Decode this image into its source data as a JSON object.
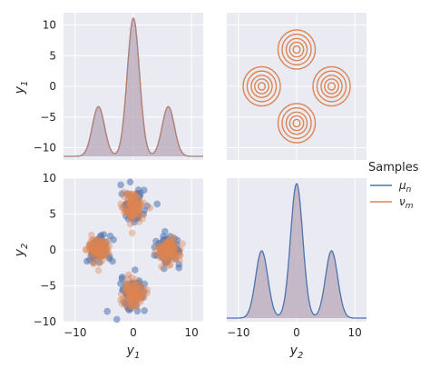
{
  "figure": {
    "type": "pairplot",
    "background": "#ffffff",
    "panel_background": "#eaeaf2",
    "grid_color": "#ffffff"
  },
  "legend": {
    "title": "Samples",
    "entries": [
      {
        "name": "μ",
        "sub": "n",
        "color": "#4c72b0"
      },
      {
        "name": "ν",
        "sub": "m",
        "color": "#dd8452"
      }
    ],
    "placement": "right-center"
  },
  "chart_data": [
    {
      "type": "area",
      "panel": "y1-diagonal-kde",
      "description_key": "kde",
      "x_range": [
        -12,
        12
      ],
      "ylabel_main": "y",
      "ylabel_sub": "1",
      "yticks": [
        "10",
        "5",
        "0",
        "−5",
        "−10"
      ],
      "ytick_values": [
        10,
        5,
        0,
        -5,
        -10
      ],
      "y_range": [
        -12,
        12
      ],
      "peaks": [
        {
          "x": -6,
          "height": 0.36
        },
        {
          "x": 0,
          "height": 1.0
        },
        {
          "x": 6,
          "height": 0.36
        }
      ],
      "peak_width": 1.05
    },
    {
      "type": "line",
      "panel": "y1-vs-y2-contour",
      "x_range": [
        -12,
        12
      ],
      "y_range": [
        -12,
        12
      ],
      "centers": [
        [
          0,
          6
        ],
        [
          -6,
          0
        ],
        [
          6,
          0
        ],
        [
          0,
          -6
        ]
      ],
      "ring_radii": [
        0.6,
        1.2,
        1.8,
        2.5,
        3.2
      ],
      "series_color": "#dd8452"
    },
    {
      "type": "scatter",
      "panel": "y2-vs-y1-scatter",
      "x_range": [
        -12,
        12
      ],
      "y_range": [
        -10,
        10
      ],
      "ylabel_main": "y",
      "ylabel_sub": "2",
      "xlabel_main": "y",
      "xlabel_sub": "1",
      "xticks": [
        "−10",
        "0",
        "10"
      ],
      "xtick_values": [
        -10,
        0,
        10
      ],
      "yticks": [
        "10",
        "5",
        "0",
        "−5",
        "−10"
      ],
      "ytick_values": [
        10,
        5,
        0,
        -5,
        -10
      ],
      "clusters": [
        [
          0,
          6
        ],
        [
          -6,
          0
        ],
        [
          6,
          0
        ],
        [
          0,
          -6
        ]
      ],
      "cluster_spread": 1.0,
      "series": [
        {
          "name": "μ_n",
          "color": "#4c72b0"
        },
        {
          "name": "ν_m",
          "color": "#dd8452"
        }
      ]
    },
    {
      "type": "area",
      "panel": "y2-diagonal-kde",
      "x_range": [
        -12,
        12
      ],
      "xlabel_main": "y",
      "xlabel_sub": "2",
      "xticks": [
        "−10",
        "0",
        "10"
      ],
      "xtick_values": [
        -10,
        0,
        10
      ],
      "peaks": [
        {
          "x": -6,
          "height": 0.5
        },
        {
          "x": 0,
          "height": 1.0
        },
        {
          "x": 6,
          "height": 0.5
        }
      ],
      "peak_width": 1.05
    }
  ]
}
